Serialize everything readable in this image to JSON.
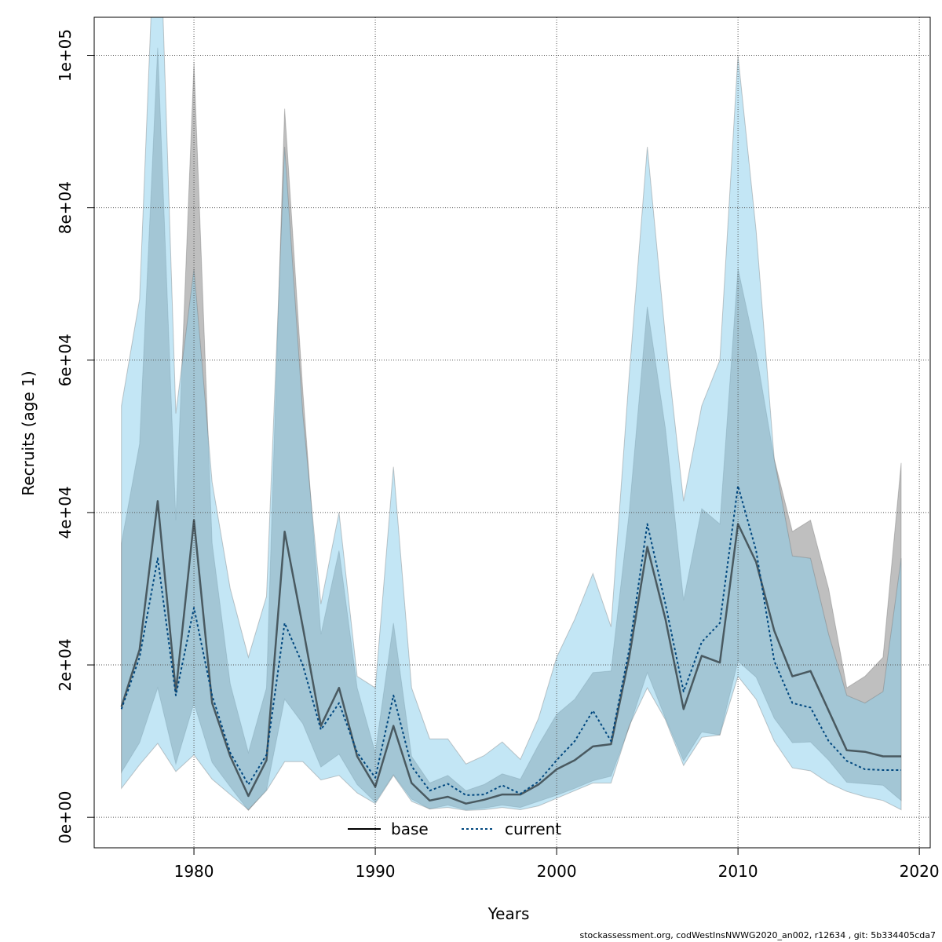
{
  "chart_data": {
    "type": "area",
    "xlabel": "Years",
    "ylabel": "Recruits (age 1)",
    "xlim": [
      1974.5,
      2020.6
    ],
    "ylim": [
      -4000,
      105000
    ],
    "x_ticks": [
      1980,
      1990,
      2000,
      2010,
      2020
    ],
    "x_tick_labels": [
      "1980",
      "1990",
      "2000",
      "2010",
      "2020"
    ],
    "y_ticks": [
      0,
      20000,
      40000,
      60000,
      80000,
      100000
    ],
    "y_tick_labels": [
      "0e+00",
      "2e+04",
      "4e+04",
      "6e+04",
      "8e+04",
      "1e+05"
    ],
    "grid": true,
    "legend_position": "bottom",
    "colors": {
      "base": "#000000",
      "current": "#00477f",
      "base_band": "#808080",
      "current_band": "#87ceeb"
    },
    "x": [
      1976,
      1977,
      1978,
      1979,
      1980,
      1981,
      1982,
      1983,
      1984,
      1985,
      1986,
      1987,
      1988,
      1989,
      1990,
      1991,
      1992,
      1993,
      1994,
      1995,
      1996,
      1997,
      1998,
      1999,
      2000,
      2001,
      2002,
      2003,
      2004,
      2005,
      2006,
      2007,
      2008,
      2009,
      2010,
      2011,
      2012,
      2013,
      2014,
      2015,
      2016,
      2017,
      2018,
      2019
    ],
    "series": [
      {
        "name": "base",
        "values": [
          14500,
          22000,
          41500,
          16500,
          39000,
          15000,
          8000,
          2800,
          7500,
          37500,
          25000,
          12000,
          17000,
          8000,
          4000,
          12000,
          4500,
          2200,
          2700,
          1800,
          2300,
          3000,
          3000,
          4300,
          6300,
          7500,
          9300,
          9600,
          21000,
          35500,
          26000,
          14200,
          21200,
          20300,
          38500,
          33500,
          24500,
          18500,
          19200,
          14000,
          8800,
          8600,
          8000,
          8000
        ],
        "lower": [
          5900,
          9800,
          17000,
          7000,
          15000,
          7200,
          4000,
          900,
          3600,
          15500,
          12300,
          6600,
          8300,
          4300,
          2000,
          5600,
          2400,
          1100,
          1600,
          1000,
          1200,
          1600,
          1300,
          2100,
          2900,
          3800,
          4800,
          5400,
          11800,
          19000,
          13000,
          7400,
          11200,
          10800,
          20500,
          18400,
          13000,
          9800,
          9900,
          7500,
          4600,
          4400,
          4200,
          2200
        ],
        "upper": [
          36000,
          49000,
          101000,
          39000,
          99000,
          36000,
          17500,
          8500,
          17000,
          93000,
          56000,
          24000,
          35000,
          17000,
          8500,
          25500,
          8000,
          4500,
          5500,
          3500,
          4300,
          5700,
          5000,
          9500,
          13500,
          15500,
          19000,
          19200,
          40000,
          67000,
          51000,
          28500,
          40500,
          38500,
          72000,
          61000,
          47000,
          37500,
          39000,
          30000,
          17000,
          18500,
          21000,
          46500
        ]
      },
      {
        "name": "current",
        "values": [
          14200,
          21000,
          34000,
          16000,
          27500,
          16000,
          8500,
          4300,
          8200,
          25500,
          20000,
          11500,
          15000,
          8500,
          5200,
          16000,
          6700,
          3500,
          4400,
          2900,
          3000,
          4200,
          3100,
          4700,
          7500,
          10000,
          14000,
          10000,
          22000,
          38500,
          28000,
          16500,
          23000,
          25500,
          43500,
          35000,
          20500,
          15000,
          14400,
          10000,
          7400,
          6300,
          6200,
          6200
        ],
        "lower": [
          3800,
          6900,
          9700,
          6000,
          8200,
          5000,
          3000,
          1000,
          3500,
          7300,
          7300,
          4900,
          5500,
          3200,
          1800,
          5500,
          2100,
          1100,
          1300,
          900,
          1000,
          1300,
          1000,
          1500,
          2500,
          3500,
          4500,
          4500,
          12000,
          17000,
          12800,
          6800,
          10500,
          10800,
          18500,
          15500,
          10000,
          6500,
          6100,
          4500,
          3400,
          2700,
          2200,
          1000
        ],
        "upper": [
          54000,
          68000,
          127000,
          53000,
          72000,
          44000,
          30000,
          21000,
          29000,
          88000,
          53000,
          28000,
          40000,
          18500,
          17000,
          46000,
          17000,
          10300,
          10300,
          7000,
          8100,
          9900,
          7600,
          13000,
          21000,
          26000,
          32000,
          25000,
          58000,
          88000,
          63000,
          41500,
          54000,
          60000,
          100000,
          77000,
          47000,
          34300,
          34000,
          24000,
          16000,
          15000,
          16500,
          34000
        ]
      }
    ]
  },
  "footer_text": "stockassessment.org, codWestInsNWWG2020_an002, r12634 , git: 5b334405cda7"
}
